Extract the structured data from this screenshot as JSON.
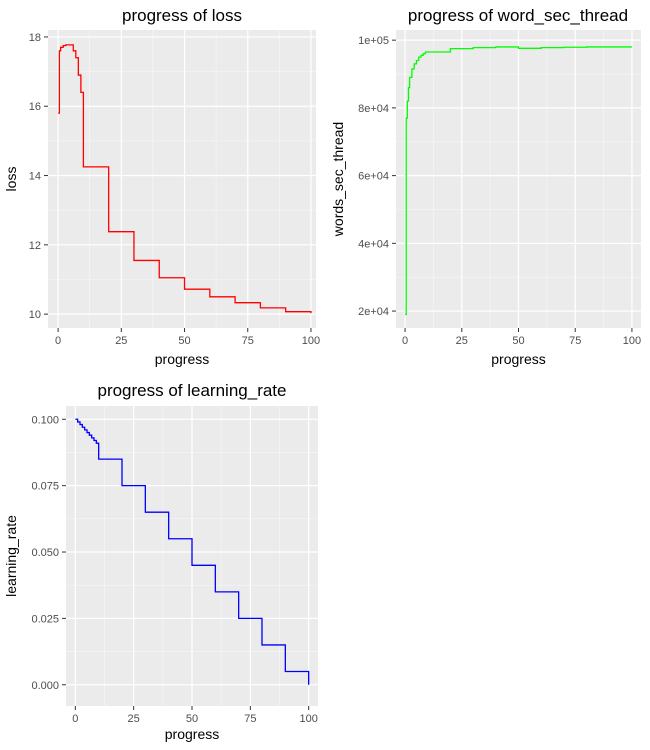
{
  "chart_data": [
    {
      "id": "loss",
      "type": "line",
      "title": "progress of loss",
      "xlabel": "progress",
      "ylabel": "loss",
      "xlim": [
        -4,
        102
      ],
      "ylim": [
        9.6,
        18.2
      ],
      "xticks": [
        0,
        25,
        50,
        75,
        100
      ],
      "xtick_labels": [
        "0",
        "25",
        "50",
        "75",
        "100"
      ],
      "yticks": [
        10,
        12,
        14,
        16,
        18
      ],
      "ytick_labels": [
        "10",
        "12",
        "14",
        "16",
        "18"
      ],
      "color": "#ff0000",
      "step": true,
      "x": [
        0,
        0.5,
        1,
        2,
        3,
        4,
        5,
        6,
        7,
        8,
        9,
        10,
        20,
        30,
        40,
        50,
        60,
        70,
        80,
        90,
        100
      ],
      "y": [
        15.8,
        17.6,
        17.7,
        17.75,
        17.77,
        17.77,
        17.77,
        17.6,
        17.4,
        16.9,
        16.4,
        14.25,
        12.38,
        11.55,
        11.05,
        10.72,
        10.5,
        10.33,
        10.18,
        10.07,
        10.03
      ],
      "grid": true
    },
    {
      "id": "words",
      "type": "line",
      "title": "progress of word_sec_thread",
      "xlabel": "progress",
      "ylabel": "words_sec_thread",
      "xlim": [
        -4,
        104
      ],
      "ylim": [
        15000,
        103000
      ],
      "xticks": [
        0,
        25,
        50,
        75,
        100
      ],
      "xtick_labels": [
        "0",
        "25",
        "50",
        "75",
        "100"
      ],
      "yticks": [
        20000,
        40000,
        60000,
        80000,
        100000
      ],
      "ytick_labels": [
        "2e+04",
        "4e+04",
        "6e+04",
        "8e+04",
        "1e+05"
      ],
      "color": "#00ff00",
      "step": true,
      "x": [
        0,
        0.5,
        1,
        1.5,
        2,
        3,
        4,
        5,
        6,
        7,
        8,
        9,
        10,
        20,
        30,
        40,
        50,
        60,
        70,
        80,
        90,
        100
      ],
      "y": [
        19000,
        77000,
        82000,
        86000,
        89000,
        91500,
        93000,
        94000,
        95000,
        95500,
        96000,
        96500,
        96500,
        97500,
        97800,
        98000,
        97600,
        97800,
        97900,
        98000,
        98000,
        98000
      ],
      "grid": true
    },
    {
      "id": "lr",
      "type": "line",
      "title": "progress of learning_rate",
      "xlabel": "progress",
      "ylabel": "learning_rate",
      "xlim": [
        -4,
        104
      ],
      "ylim": [
        -0.008,
        0.105
      ],
      "xticks": [
        0,
        25,
        50,
        75,
        100
      ],
      "xtick_labels": [
        "0",
        "25",
        "50",
        "75",
        "100"
      ],
      "yticks": [
        0,
        0.025,
        0.05,
        0.075,
        0.1
      ],
      "ytick_labels": [
        "0.000",
        "0.025",
        "0.050",
        "0.075",
        "0.100"
      ],
      "color": "#0000ff",
      "step": true,
      "x": [
        0,
        1,
        2,
        3,
        4,
        5,
        6,
        7,
        8,
        9,
        10,
        20,
        30,
        40,
        50,
        60,
        70,
        80,
        90,
        100
      ],
      "y": [
        0.1,
        0.099,
        0.098,
        0.097,
        0.096,
        0.095,
        0.094,
        0.093,
        0.092,
        0.091,
        0.085,
        0.075,
        0.065,
        0.055,
        0.045,
        0.035,
        0.025,
        0.015,
        0.005,
        0.0
      ],
      "grid": true
    }
  ]
}
